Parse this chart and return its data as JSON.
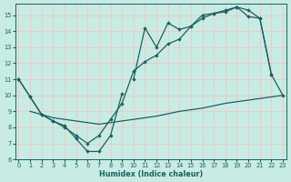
{
  "bg_color": "#c8ebe3",
  "grid_color": "#f5c0c0",
  "line_color": "#1a6060",
  "xlabel": "Humidex (Indice chaleur)",
  "xlim": [
    -0.3,
    23.3
  ],
  "ylim": [
    6.0,
    15.7
  ],
  "xticks": [
    0,
    1,
    2,
    3,
    4,
    5,
    6,
    7,
    8,
    9,
    10,
    11,
    12,
    13,
    14,
    15,
    16,
    17,
    18,
    19,
    20,
    21,
    22,
    23
  ],
  "yticks": [
    6,
    7,
    8,
    9,
    10,
    11,
    12,
    13,
    14,
    15
  ],
  "series": [
    {
      "x": [
        0,
        1,
        2,
        3,
        4,
        5,
        6,
        7,
        8,
        9
      ],
      "y": [
        11.0,
        9.9,
        8.8,
        8.4,
        8.1,
        7.3,
        6.5,
        6.5,
        7.5,
        10.1
      ],
      "markers": true,
      "lw": 0.9
    },
    {
      "x": [
        1,
        2,
        3,
        4,
        5,
        6,
        7,
        8,
        9,
        10,
        11,
        12,
        13,
        14,
        15,
        16,
        17,
        18,
        19,
        20,
        21,
        22,
        23
      ],
      "y": [
        9.0,
        8.8,
        8.6,
        8.5,
        8.4,
        8.3,
        8.2,
        8.3,
        8.4,
        8.5,
        8.6,
        8.7,
        8.85,
        9.0,
        9.1,
        9.2,
        9.35,
        9.5,
        9.6,
        9.7,
        9.8,
        9.9,
        10.0
      ],
      "markers": false,
      "lw": 0.9
    },
    {
      "x": [
        0,
        1,
        2,
        3,
        4,
        5,
        6,
        7,
        8,
        9,
        10,
        11,
        12,
        13,
        14,
        15,
        16,
        17,
        18,
        19,
        20,
        21,
        22,
        23
      ],
      "y": [
        11.0,
        9.9,
        8.8,
        8.4,
        8.0,
        7.5,
        7.0,
        7.5,
        8.5,
        9.5,
        11.5,
        12.1,
        12.5,
        13.2,
        13.5,
        14.3,
        14.8,
        15.1,
        15.3,
        15.5,
        15.3,
        14.8,
        11.3,
        10.0
      ],
      "markers": true,
      "lw": 0.9
    },
    {
      "x": [
        10,
        11,
        12,
        13,
        14,
        15,
        16,
        17,
        18,
        19,
        20,
        21,
        22
      ],
      "y": [
        11.0,
        14.2,
        13.0,
        14.5,
        14.1,
        14.3,
        15.0,
        15.1,
        15.2,
        15.5,
        14.9,
        14.8,
        11.3
      ],
      "markers": true,
      "lw": 0.9
    }
  ]
}
